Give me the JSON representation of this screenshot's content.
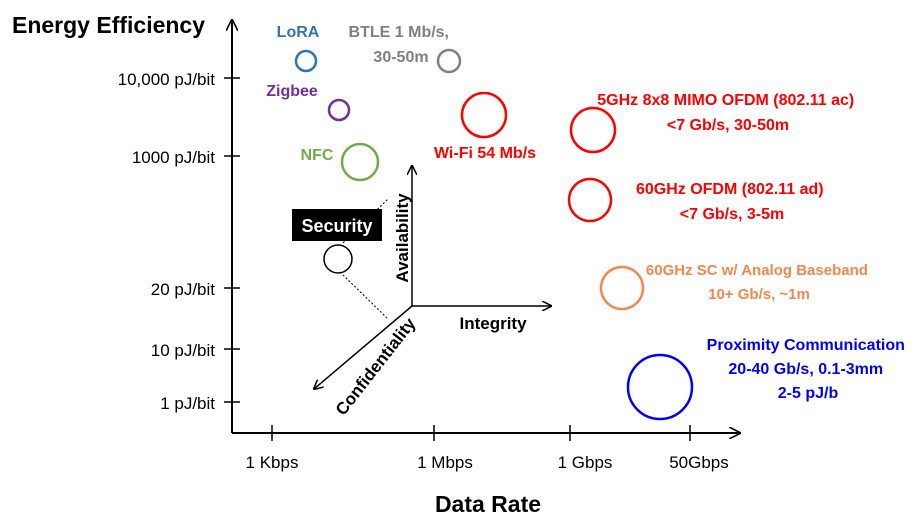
{
  "chart_data": {
    "type": "bubble-diagram",
    "title": "",
    "ylabel": "Energy Efficiency",
    "xlabel": "Data Rate",
    "y_ticks": [
      "10,000 pJ/bit",
      "1000 pJ/bit",
      "20 pJ/bit",
      "10 pJ/bit",
      "1 pJ/bit"
    ],
    "x_ticks": [
      "1 Kbps",
      "1 Mbps",
      "1 Gbps",
      "50Gbps"
    ],
    "technologies": [
      {
        "label_lines": [
          "LoRA"
        ],
        "color": "#2e75b6"
      },
      {
        "label_lines": [
          "BTLE 1 Mb/s,",
          "30-50m"
        ],
        "color": "#808080"
      },
      {
        "label_lines": [
          "Zigbee"
        ],
        "color": "#7030a0"
      },
      {
        "label_lines": [
          "NFC"
        ],
        "color": "#70ad47"
      },
      {
        "label_lines": [
          "Wi-Fi 54 Mb/s"
        ],
        "color": "#ff0000"
      },
      {
        "label_lines": [
          "5GHz 8x8 MIMO OFDM (802.11 ac)",
          "<7 Gb/s, 30-50m"
        ],
        "color": "#ff0000"
      },
      {
        "label_lines": [
          "60GHz OFDM (802.11 ad)",
          "<7 Gb/s, 3-5m"
        ],
        "color": "#ff0000"
      },
      {
        "label_lines": [
          "60GHz SC w/ Analog Baseband",
          "10+ Gb/s, ~1m"
        ],
        "color": "#f4874b"
      },
      {
        "label_lines": [
          "Proximity Communication",
          "20-40 Gb/s, 0.1-3mm",
          "2-5 pJ/b"
        ],
        "color": "#0000ff"
      },
      {
        "label_lines": [],
        "color": "#000000"
      }
    ],
    "inset": {
      "box_label": "Security",
      "axes": [
        "Availability",
        "Integrity",
        "Confidentiality"
      ]
    }
  }
}
